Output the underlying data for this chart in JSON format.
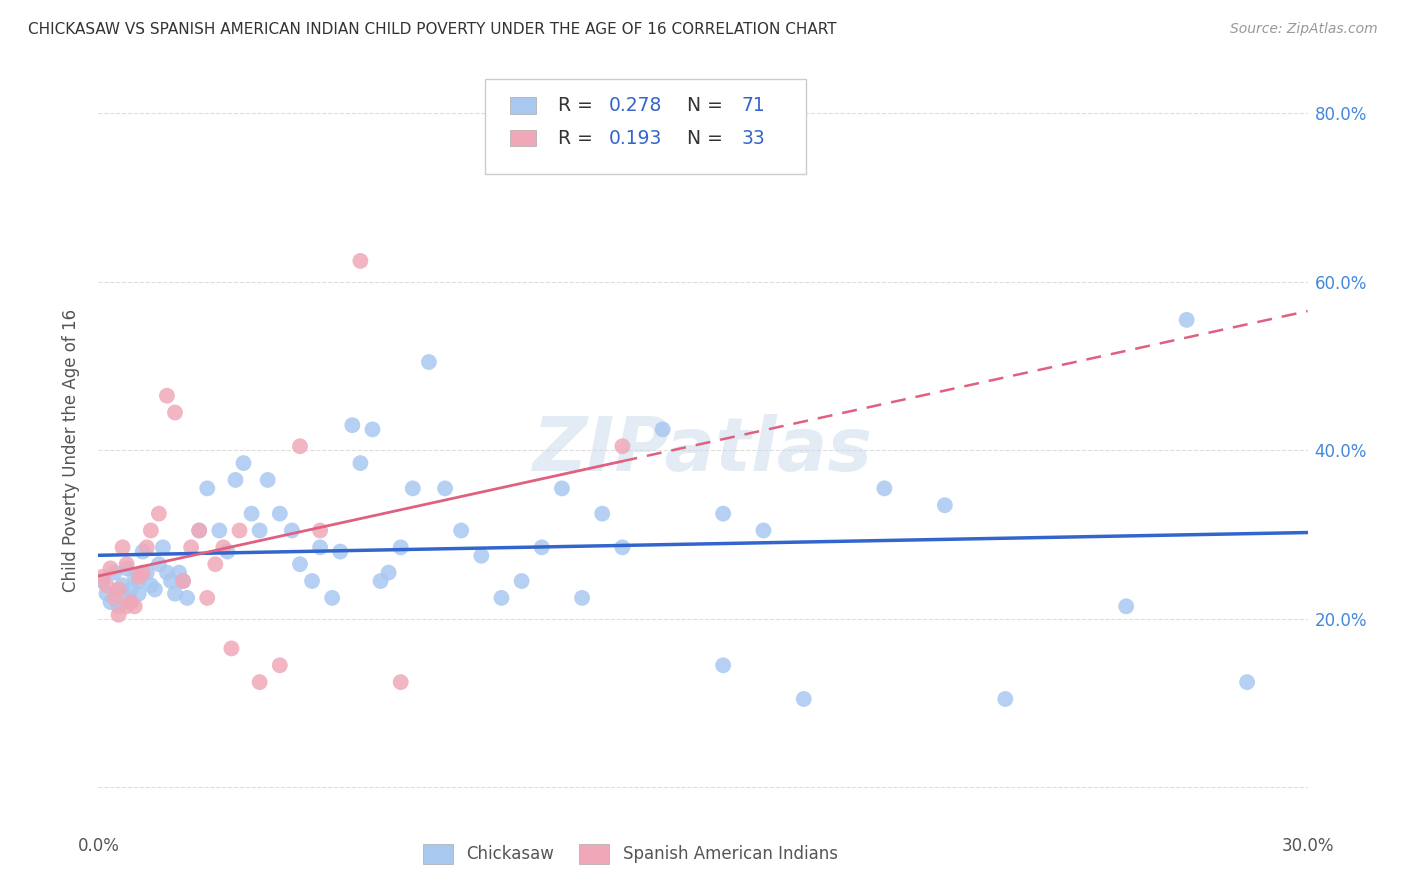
{
  "title": "CHICKASAW VS SPANISH AMERICAN INDIAN CHILD POVERTY UNDER THE AGE OF 16 CORRELATION CHART",
  "source": "Source: ZipAtlas.com",
  "ylabel": "Child Poverty Under the Age of 16",
  "legend_label1": "Chickasaw",
  "legend_label2": "Spanish American Indians",
  "R1": 0.278,
  "N1": 71,
  "R2": 0.193,
  "N2": 33,
  "color1": "#a8c8f0",
  "color2": "#f0a8b8",
  "line_color1": "#3366cc",
  "line_color2": "#e06080",
  "xmin": 0.0,
  "xmax": 0.3,
  "ymin": 0.0,
  "ymax": 0.85,
  "ytick_vals": [
    0.0,
    0.2,
    0.4,
    0.6,
    0.8
  ],
  "xtick_vals": [
    0.0,
    0.05,
    0.1,
    0.15,
    0.2,
    0.25,
    0.3
  ],
  "watermark": "ZIPatlas",
  "background_color": "#ffffff",
  "grid_color": "#dddddd",
  "chickasaw_x": [
    0.001,
    0.002,
    0.003,
    0.004,
    0.005,
    0.005,
    0.006,
    0.007,
    0.007,
    0.008,
    0.008,
    0.009,
    0.01,
    0.01,
    0.011,
    0.012,
    0.013,
    0.014,
    0.015,
    0.016,
    0.017,
    0.018,
    0.019,
    0.02,
    0.021,
    0.022,
    0.025,
    0.027,
    0.03,
    0.032,
    0.034,
    0.036,
    0.038,
    0.04,
    0.042,
    0.045,
    0.048,
    0.05,
    0.053,
    0.055,
    0.058,
    0.06,
    0.063,
    0.065,
    0.068,
    0.07,
    0.072,
    0.075,
    0.078,
    0.082,
    0.086,
    0.09,
    0.095,
    0.1,
    0.105,
    0.11,
    0.115,
    0.12,
    0.125,
    0.13,
    0.14,
    0.155,
    0.165,
    0.175,
    0.195,
    0.21,
    0.225,
    0.155,
    0.255,
    0.27,
    0.285
  ],
  "chickasaw_y": [
    0.245,
    0.23,
    0.22,
    0.255,
    0.235,
    0.215,
    0.24,
    0.26,
    0.225,
    0.235,
    0.22,
    0.25,
    0.23,
    0.245,
    0.28,
    0.255,
    0.24,
    0.235,
    0.265,
    0.285,
    0.255,
    0.245,
    0.23,
    0.255,
    0.245,
    0.225,
    0.305,
    0.355,
    0.305,
    0.28,
    0.365,
    0.385,
    0.325,
    0.305,
    0.365,
    0.325,
    0.305,
    0.265,
    0.245,
    0.285,
    0.225,
    0.28,
    0.43,
    0.385,
    0.425,
    0.245,
    0.255,
    0.285,
    0.355,
    0.505,
    0.355,
    0.305,
    0.275,
    0.225,
    0.245,
    0.285,
    0.355,
    0.225,
    0.325,
    0.285,
    0.425,
    0.325,
    0.305,
    0.105,
    0.355,
    0.335,
    0.105,
    0.145,
    0.215,
    0.555,
    0.125
  ],
  "spanish_x": [
    0.001,
    0.002,
    0.003,
    0.004,
    0.005,
    0.005,
    0.006,
    0.007,
    0.007,
    0.008,
    0.009,
    0.01,
    0.011,
    0.012,
    0.013,
    0.015,
    0.017,
    0.019,
    0.021,
    0.023,
    0.025,
    0.027,
    0.029,
    0.031,
    0.033,
    0.035,
    0.04,
    0.045,
    0.05,
    0.055,
    0.065,
    0.075,
    0.13
  ],
  "spanish_y": [
    0.25,
    0.24,
    0.26,
    0.225,
    0.235,
    0.205,
    0.285,
    0.265,
    0.215,
    0.22,
    0.215,
    0.25,
    0.255,
    0.285,
    0.305,
    0.325,
    0.465,
    0.445,
    0.245,
    0.285,
    0.305,
    0.225,
    0.265,
    0.285,
    0.165,
    0.305,
    0.125,
    0.145,
    0.405,
    0.305,
    0.625,
    0.125,
    0.405
  ]
}
